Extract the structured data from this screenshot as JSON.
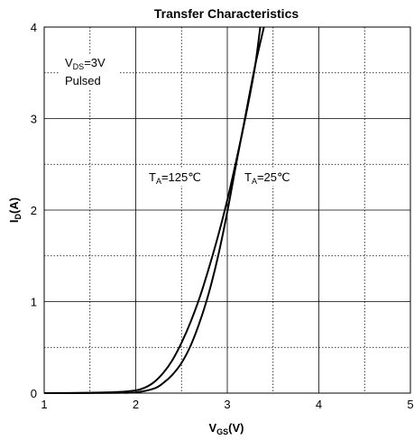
{
  "chart_data": {
    "type": "line",
    "title": "Transfer Characteristics",
    "xlabel": {
      "main": "V",
      "sub": "GS",
      "suffix": "(V)"
    },
    "ylabel": {
      "main": "I",
      "sub": "D",
      "suffix": "(A)"
    },
    "xlim": [
      1,
      5
    ],
    "ylim": [
      0,
      4
    ],
    "x_major_ticks": [
      1,
      2,
      3,
      4,
      5
    ],
    "y_major_ticks": [
      0,
      1,
      2,
      3,
      4
    ],
    "x_minor_grid": [
      1.5,
      2.5,
      3.5,
      4.5
    ],
    "y_minor_grid": [
      0.5,
      1.5,
      2.5,
      3.5
    ],
    "grid": true,
    "annotations": {
      "vds": {
        "main": "V",
        "sub": "DS",
        "suffix": "=3V"
      },
      "pulsed": "Pulsed",
      "ta125": {
        "main": "T",
        "sub": "A",
        "suffix": "=125℃"
      },
      "ta25": {
        "main": "T",
        "sub": "A",
        "suffix": "=25℃"
      }
    },
    "series": [
      {
        "label": "TA=125℃",
        "color": "#000000",
        "x": [
          1.0,
          1.5,
          1.8,
          2.0,
          2.1,
          2.2,
          2.3,
          2.4,
          2.5,
          2.6,
          2.7,
          2.8,
          2.9,
          3.0,
          3.1,
          3.2,
          3.3,
          3.36
        ],
        "y": [
          0.0,
          0.004,
          0.012,
          0.03,
          0.06,
          0.12,
          0.22,
          0.36,
          0.55,
          0.78,
          1.05,
          1.37,
          1.72,
          2.11,
          2.55,
          3.02,
          3.55,
          4.0
        ]
      },
      {
        "label": "TA=25℃",
        "color": "#000000",
        "x": [
          1.0,
          1.5,
          1.8,
          2.0,
          2.2,
          2.3,
          2.4,
          2.5,
          2.6,
          2.7,
          2.8,
          2.9,
          3.0,
          3.1,
          3.2,
          3.3,
          3.4
        ],
        "y": [
          0.0,
          0.001,
          0.003,
          0.008,
          0.05,
          0.11,
          0.2,
          0.33,
          0.52,
          0.78,
          1.1,
          1.5,
          1.98,
          2.52,
          3.04,
          3.56,
          4.0
        ]
      }
    ]
  }
}
